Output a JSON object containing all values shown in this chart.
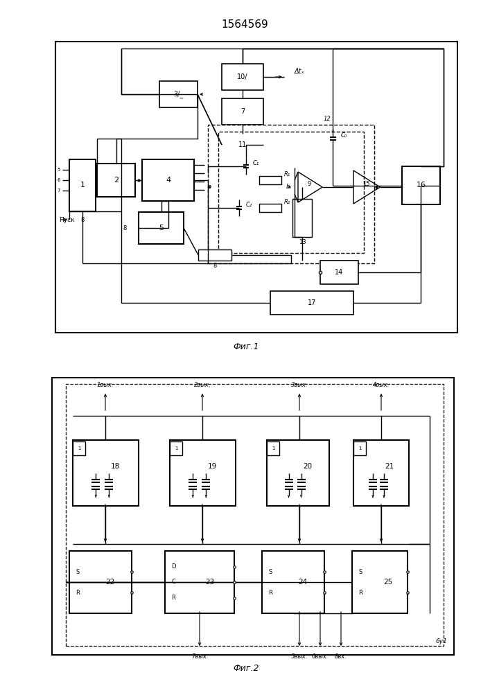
{
  "title": "1564569",
  "fig1_caption": "Фиг.1",
  "fig2_caption": "Фиг.2",
  "bg_color": "#ffffff"
}
